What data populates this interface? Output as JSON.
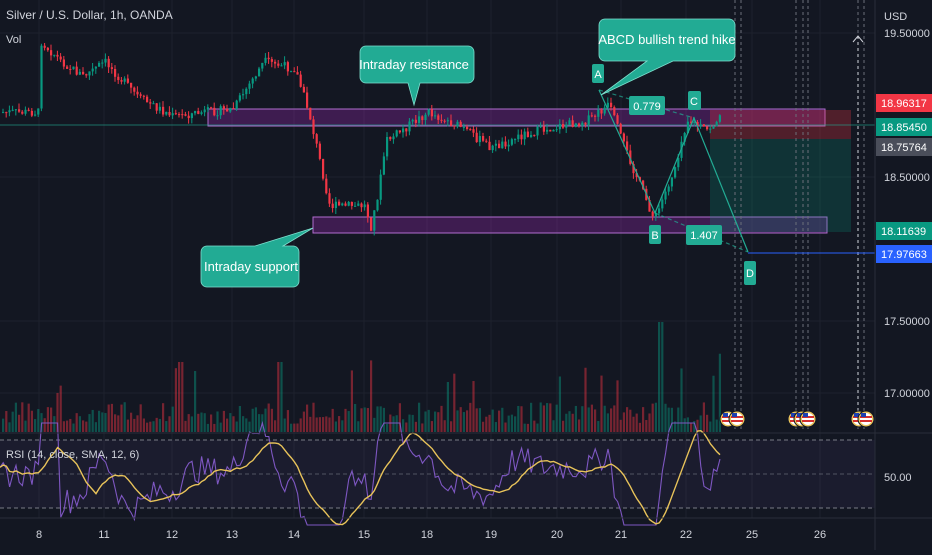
{
  "symbol": {
    "title": "Silver / U.S. Dollar, 1h, OANDA",
    "vol_label": "Vol"
  },
  "price_axis": {
    "currency": "USD",
    "ticks": [
      "19.50000",
      "18.50000",
      "17.50000",
      "17.00000"
    ],
    "tick_values": [
      19.5,
      18.5,
      17.5,
      17.0
    ]
  },
  "price_tags": [
    {
      "label": "18.96317",
      "value": 18.96317,
      "color": "#f23645"
    },
    {
      "label": "18.85450",
      "value": 18.8545,
      "color": "#089981"
    },
    {
      "label": "18.75764",
      "value": 18.75764,
      "color": "#4a4e5a"
    },
    {
      "label": "18.11639",
      "value": 18.11639,
      "color": "#089981"
    },
    {
      "label": "17.97663",
      "value": 17.97663,
      "color": "#2962ff"
    }
  ],
  "time_axis": {
    "labels": [
      "8",
      "11",
      "12",
      "13",
      "14",
      "15",
      "18",
      "19",
      "20",
      "21",
      "22",
      "25",
      "26"
    ]
  },
  "rsi": {
    "label": "RSI (14, close, SMA, 12, 6)",
    "tick": "50.00",
    "upper": 70,
    "middle": 50,
    "lower": 30
  },
  "annotations": {
    "resistance": "Intraday resistance",
    "support": "Intraday support",
    "abcd": "ABCD bullish trend hike",
    "point_a": "A",
    "point_b": "B",
    "point_c": "C",
    "point_d": "D",
    "ratio_ab": "0.779",
    "ratio_bc": "1.407"
  },
  "colors": {
    "up": "#089981",
    "down": "#f23645",
    "zone": "#9c27b0",
    "callout": "#22ab94",
    "rsi_line": "#7e57c2",
    "rsi_ma": "#e8c35a"
  },
  "chart_data": {
    "type": "line",
    "x_axis": "time (hourly bars)",
    "ylim": [
      16.85,
      19.6
    ],
    "close_path": [
      [
        8,
        19.45
      ],
      [
        9,
        19.3
      ],
      [
        10,
        19.2
      ],
      [
        11,
        19.3
      ],
      [
        11.5,
        19.05
      ],
      [
        12,
        18.92
      ],
      [
        12.5,
        18.95
      ],
      [
        13,
        18.97
      ],
      [
        13.5,
        19.3
      ],
      [
        14,
        19.25
      ],
      [
        14.2,
        18.95
      ],
      [
        14.5,
        18.3
      ],
      [
        15,
        18.3
      ],
      [
        15.3,
        18.15
      ],
      [
        15.7,
        18.45
      ],
      [
        16,
        18.75
      ],
      [
        17,
        18.85
      ],
      [
        18,
        18.95
      ],
      [
        18.5,
        18.85
      ],
      [
        19,
        18.7
      ],
      [
        19.5,
        18.8
      ],
      [
        20,
        18.85
      ],
      [
        20.5,
        18.9
      ],
      [
        20.8,
        19.0
      ],
      [
        21,
        18.75
      ],
      [
        21.5,
        18.2
      ],
      [
        21.8,
        18.55
      ],
      [
        22,
        18.9
      ],
      [
        22.3,
        18.82
      ],
      [
        22.6,
        18.95
      ]
    ],
    "zones": [
      {
        "name": "Intraday resistance",
        "from": 18.84,
        "to": 18.96
      },
      {
        "name": "Intraday support",
        "from": 18.0,
        "to": 18.14
      }
    ],
    "abcd_pattern": {
      "A": 19.09,
      "B": 18.11,
      "C": 18.88,
      "D": 17.96,
      "ratio_bc": 0.779,
      "ratio_cd": 1.407
    },
    "position": {
      "entry": 18.8545,
      "stop": 18.96317,
      "target": 18.11639
    }
  }
}
